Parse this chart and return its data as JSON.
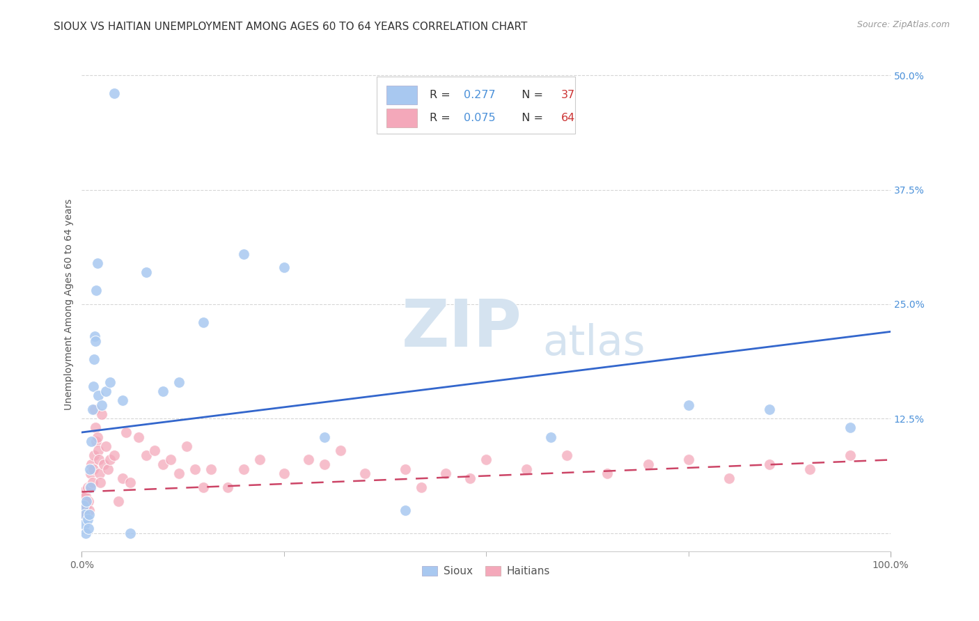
{
  "title": "SIOUX VS HAITIAN UNEMPLOYMENT AMONG AGES 60 TO 64 YEARS CORRELATION CHART",
  "source": "Source: ZipAtlas.com",
  "ylabel": "Unemployment Among Ages 60 to 64 years",
  "xlim": [
    0,
    100
  ],
  "ylim": [
    -2,
    52
  ],
  "sioux_R": 0.277,
  "sioux_N": 37,
  "haitian_R": 0.075,
  "haitian_N": 64,
  "sioux_color": "#a8c8f0",
  "haitian_color": "#f4a8ba",
  "sioux_line_color": "#3366cc",
  "haitian_line_color": "#cc4466",
  "background_color": "#ffffff",
  "grid_color": "#cccccc",
  "watermark_zip": "ZIP",
  "watermark_atlas": "atlas",
  "watermark_color": "#d5e3f0",
  "title_fontsize": 11,
  "axis_label_fontsize": 10,
  "tick_fontsize": 10,
  "legend_fontsize": 11,
  "source_fontsize": 9,
  "sioux_x": [
    0.2,
    0.3,
    0.4,
    0.5,
    0.6,
    0.7,
    0.8,
    0.9,
    1.0,
    1.1,
    1.2,
    1.3,
    1.4,
    1.5,
    1.6,
    1.7,
    1.8,
    1.9,
    2.0,
    2.5,
    3.0,
    3.5,
    4.0,
    5.0,
    6.0,
    8.0,
    10.0,
    12.0,
    15.0,
    20.0,
    25.0,
    30.0,
    40.0,
    58.0,
    75.0,
    85.0,
    95.0
  ],
  "sioux_y": [
    3.0,
    1.0,
    2.0,
    0.0,
    3.5,
    1.5,
    0.5,
    2.0,
    7.0,
    5.0,
    10.0,
    13.5,
    16.0,
    19.0,
    21.5,
    21.0,
    26.5,
    29.5,
    15.0,
    14.0,
    15.5,
    16.5,
    48.0,
    14.5,
    0.0,
    28.5,
    15.5,
    16.5,
    23.0,
    30.5,
    29.0,
    10.5,
    2.5,
    10.5,
    14.0,
    13.5,
    11.5
  ],
  "haitian_x": [
    0.2,
    0.3,
    0.4,
    0.5,
    0.6,
    0.7,
    0.8,
    0.9,
    1.0,
    1.1,
    1.2,
    1.3,
    1.4,
    1.5,
    1.6,
    1.7,
    1.8,
    1.9,
    2.0,
    2.1,
    2.2,
    2.3,
    2.5,
    2.7,
    3.0,
    3.2,
    3.5,
    4.0,
    4.5,
    5.0,
    5.5,
    6.0,
    7.0,
    8.0,
    9.0,
    10.0,
    11.0,
    12.0,
    13.0,
    14.0,
    15.0,
    16.0,
    18.0,
    20.0,
    22.0,
    25.0,
    28.0,
    30.0,
    32.0,
    35.0,
    40.0,
    42.0,
    45.0,
    48.0,
    50.0,
    55.0,
    60.0,
    65.0,
    70.0,
    75.0,
    80.0,
    85.0,
    90.0,
    95.0
  ],
  "haitian_y": [
    3.0,
    4.5,
    2.0,
    4.0,
    3.0,
    5.0,
    3.5,
    2.5,
    5.0,
    6.5,
    7.5,
    5.5,
    7.0,
    8.5,
    13.5,
    11.5,
    10.0,
    10.5,
    9.0,
    8.0,
    6.5,
    5.5,
    13.0,
    7.5,
    9.5,
    7.0,
    8.0,
    8.5,
    3.5,
    6.0,
    11.0,
    5.5,
    10.5,
    8.5,
    9.0,
    7.5,
    8.0,
    6.5,
    9.5,
    7.0,
    5.0,
    7.0,
    5.0,
    7.0,
    8.0,
    6.5,
    8.0,
    7.5,
    9.0,
    6.5,
    7.0,
    5.0,
    6.5,
    6.0,
    8.0,
    7.0,
    8.5,
    6.5,
    7.5,
    8.0,
    6.0,
    7.5,
    7.0,
    8.5
  ],
  "sioux_line_x0": 0,
  "sioux_line_x1": 100,
  "sioux_line_y0": 11.0,
  "sioux_line_y1": 22.0,
  "haitian_line_x0": 0,
  "haitian_line_x1": 100,
  "haitian_line_y0": 4.5,
  "haitian_line_y1": 8.0
}
